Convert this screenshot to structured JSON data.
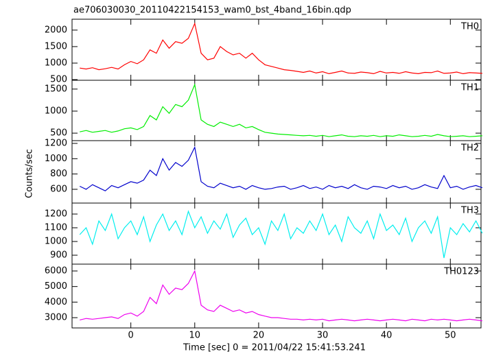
{
  "chart_data": {
    "type": "line",
    "title": "ae706030030_20110422154153_wam0_bst_4band_16bin.qdp",
    "xlabel": "Time [sec] 0 = 2011/04/22 15:41:53.241",
    "ylabel": "Counts/sec",
    "xlim": [
      -9.2,
      54.8
    ],
    "xticks": [
      0,
      10,
      20,
      30,
      40,
      50
    ],
    "x": [
      -8,
      -7,
      -6,
      -5,
      -4,
      -3,
      -2,
      -1,
      0,
      1,
      2,
      3,
      4,
      5,
      6,
      7,
      8,
      9,
      10,
      11,
      12,
      13,
      14,
      15,
      16,
      17,
      18,
      19,
      20,
      21,
      22,
      23,
      24,
      25,
      26,
      27,
      28,
      29,
      30,
      31,
      32,
      33,
      34,
      35,
      36,
      37,
      38,
      39,
      40,
      41,
      42,
      43,
      44,
      45,
      46,
      47,
      48,
      49,
      50,
      51,
      52,
      53,
      54,
      55
    ],
    "series": [
      {
        "name": "TH0",
        "color": "#ff0000",
        "ylim": [
          480,
          2330
        ],
        "yticks": [
          500,
          1000,
          1500,
          2000
        ],
        "values": [
          850,
          820,
          860,
          800,
          830,
          870,
          820,
          950,
          1050,
          980,
          1100,
          1400,
          1300,
          1700,
          1450,
          1650,
          1600,
          1750,
          2200,
          1300,
          1100,
          1150,
          1500,
          1350,
          1250,
          1300,
          1150,
          1300,
          1100,
          950,
          900,
          850,
          800,
          780,
          750,
          720,
          760,
          700,
          740,
          680,
          720,
          760,
          700,
          690,
          730,
          710,
          680,
          750,
          700,
          720,
          690,
          740,
          700,
          680,
          720,
          710,
          760,
          690,
          700,
          730,
          680,
          710,
          700,
          690
        ]
      },
      {
        "name": "TH1",
        "color": "#00ee00",
        "ylim": [
          330,
          1700
        ],
        "yticks": [
          500,
          1000,
          1500
        ],
        "values": [
          530,
          560,
          520,
          540,
          560,
          520,
          550,
          600,
          620,
          580,
          650,
          900,
          800,
          1100,
          950,
          1150,
          1100,
          1250,
          1600,
          800,
          700,
          650,
          750,
          700,
          650,
          700,
          620,
          650,
          580,
          520,
          500,
          480,
          470,
          460,
          450,
          440,
          450,
          430,
          450,
          420,
          440,
          460,
          430,
          420,
          440,
          430,
          450,
          420,
          440,
          430,
          460,
          440,
          420,
          430,
          450,
          430,
          470,
          440,
          420,
          430,
          440,
          420,
          430,
          440
        ]
      },
      {
        "name": "TH2",
        "color": "#0000cc",
        "ylim": [
          420,
          1236
        ],
        "yticks": [
          600,
          800,
          1000,
          1200
        ],
        "values": [
          640,
          600,
          660,
          620,
          580,
          650,
          620,
          660,
          700,
          680,
          720,
          850,
          780,
          1000,
          850,
          950,
          900,
          980,
          1150,
          700,
          640,
          620,
          680,
          650,
          620,
          640,
          600,
          650,
          620,
          600,
          610,
          630,
          640,
          600,
          620,
          650,
          610,
          630,
          600,
          650,
          620,
          640,
          610,
          660,
          620,
          600,
          640,
          630,
          610,
          650,
          620,
          640,
          600,
          620,
          660,
          630,
          610,
          780,
          620,
          640,
          600,
          630,
          650,
          620
        ]
      },
      {
        "name": "TH3",
        "color": "#00eeee",
        "ylim": [
          835,
          1280
        ],
        "yticks": [
          900,
          1000,
          1100,
          1200
        ],
        "values": [
          1050,
          1100,
          980,
          1150,
          1080,
          1200,
          1020,
          1100,
          1150,
          1050,
          1180,
          1000,
          1120,
          1200,
          1080,
          1150,
          1050,
          1220,
          1100,
          1180,
          1060,
          1150,
          1090,
          1200,
          1030,
          1120,
          1170,
          1050,
          1100,
          980,
          1150,
          1080,
          1200,
          1020,
          1100,
          1060,
          1150,
          1080,
          1200,
          1050,
          1120,
          1000,
          1180,
          1100,
          1060,
          1150,
          1020,
          1200,
          1080,
          1120,
          1050,
          1170,
          1000,
          1100,
          1150,
          1060,
          1180,
          880,
          1100,
          1050,
          1130,
          1070,
          1150,
          1060
        ]
      },
      {
        "name": "TH0123",
        "color": "#ee00ee",
        "ylim": [
          2340,
          6440
        ],
        "yticks": [
          3000,
          4000,
          5000,
          6000
        ],
        "values": [
          2850,
          2950,
          2900,
          2950,
          3000,
          3050,
          2950,
          3200,
          3300,
          3100,
          3400,
          4300,
          3900,
          5100,
          4500,
          4900,
          4800,
          5200,
          6000,
          3800,
          3500,
          3400,
          3800,
          3600,
          3400,
          3500,
          3300,
          3400,
          3200,
          3100,
          3000,
          3000,
          2950,
          2900,
          2900,
          2850,
          2900,
          2850,
          2900,
          2800,
          2850,
          2900,
          2850,
          2800,
          2850,
          2900,
          2850,
          2800,
          2850,
          2900,
          2850,
          2800,
          2900,
          2850,
          2800,
          2900,
          2850,
          2900,
          2850,
          2800,
          2850,
          2900,
          2850,
          2800
        ]
      }
    ]
  }
}
